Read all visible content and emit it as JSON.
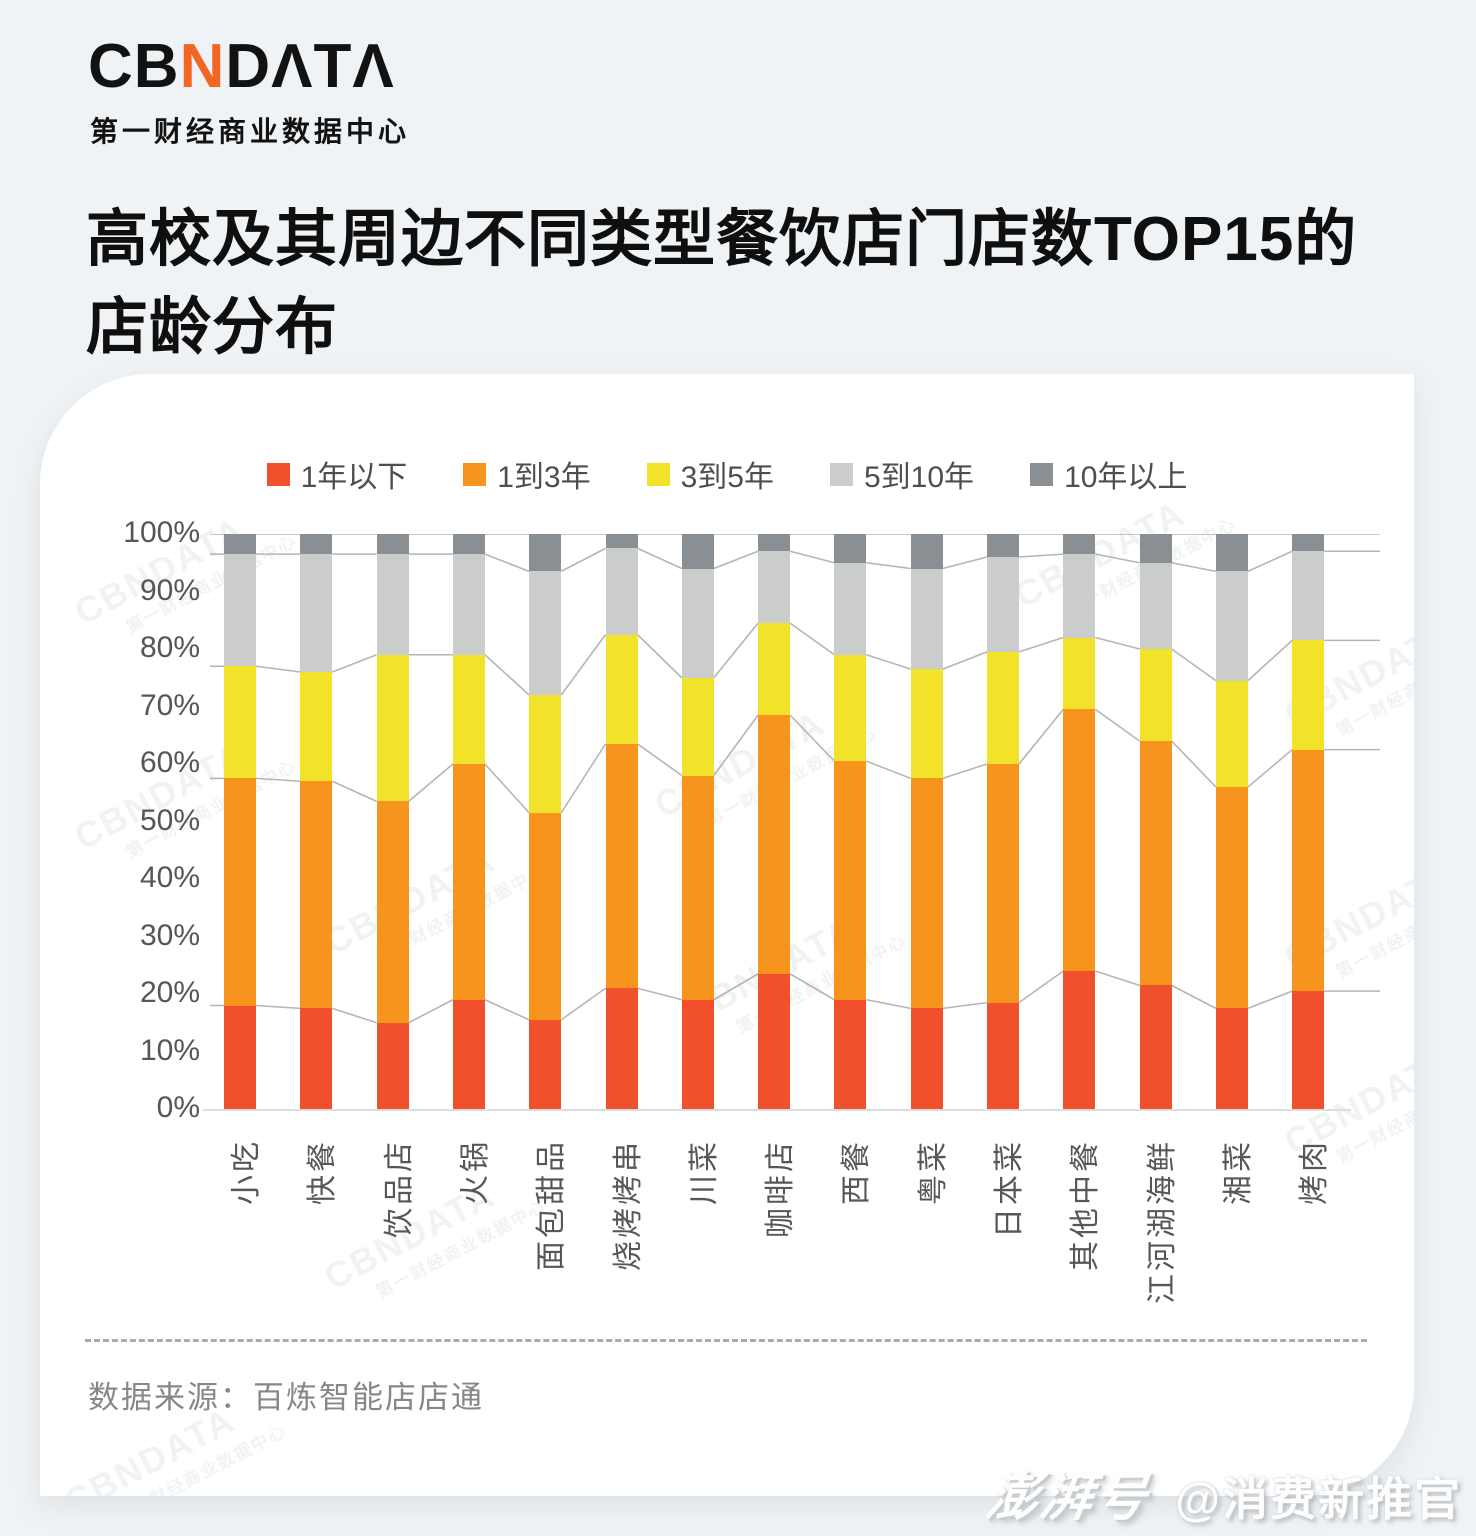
{
  "brand": {
    "logo_cb": "CB",
    "logo_n": "N",
    "logo_data": "DΛTΛ",
    "tagline": "第一财经商业数据中心",
    "accent_color": "#F26522"
  },
  "title": {
    "line1": "高校及其周边不同类型餐饮店门店数TOP15的",
    "line2": "店龄分布"
  },
  "watermark": {
    "brand": "CBNDATA",
    "sub": "第一财经商业数据中心"
  },
  "source_note": "数据来源：百炼智能店店通",
  "publisher_mark": {
    "platform": "澎湃号",
    "account": "@消费新推官"
  },
  "chart_data": {
    "type": "bar",
    "stacked": true,
    "percent_stacked": true,
    "title": "高校及其周边不同类型餐饮店门店数TOP15的店龄分布",
    "xlabel": "",
    "ylabel": "",
    "ylim": [
      0,
      100
    ],
    "grid": false,
    "legend_position": "top",
    "y_ticks": [
      "100%",
      "90%",
      "80%",
      "70%",
      "60%",
      "50%",
      "40%",
      "30%",
      "20%",
      "10%",
      "0%"
    ],
    "categories": [
      "小吃",
      "快餐",
      "饮品店",
      "火锅",
      "面包甜品",
      "烧烤烤串",
      "川菜",
      "咖啡店",
      "西餐",
      "粤菜",
      "日本菜",
      "其他中餐",
      "江河湖海鲜",
      "湘菜",
      "烤肉"
    ],
    "series": [
      {
        "name": "1年以下",
        "color": "#F0502B",
        "values": [
          18,
          17.5,
          15,
          19,
          15.5,
          21,
          19,
          23.5,
          19,
          17.5,
          18.5,
          24,
          21.5,
          17.5,
          20.5
        ]
      },
      {
        "name": "1到3年",
        "color": "#F7941E",
        "values": [
          39.5,
          39.5,
          38.5,
          41,
          36,
          42.5,
          39,
          45,
          41.5,
          40,
          41.5,
          45.5,
          42.5,
          38.5,
          42
        ]
      },
      {
        "name": "3到5年",
        "color": "#F3E22A",
        "values": [
          19.5,
          19,
          25.5,
          19,
          20.5,
          19,
          17,
          16,
          18.5,
          19,
          19.5,
          12.5,
          16,
          18.5,
          19
        ]
      },
      {
        "name": "5到10年",
        "color": "#CBCDCC",
        "values": [
          19.5,
          20.5,
          17.5,
          17.5,
          21.5,
          15,
          19,
          12.5,
          16,
          17.5,
          16.5,
          14.5,
          15,
          19,
          15.5
        ]
      },
      {
        "name": "10年以上",
        "color": "#8A8F93",
        "values": [
          3.5,
          3.5,
          3.5,
          3.5,
          6.5,
          2.5,
          6,
          3,
          5,
          6,
          4,
          3.5,
          5,
          6.5,
          3
        ]
      }
    ],
    "connector_line_color": "#B5B5B5"
  }
}
